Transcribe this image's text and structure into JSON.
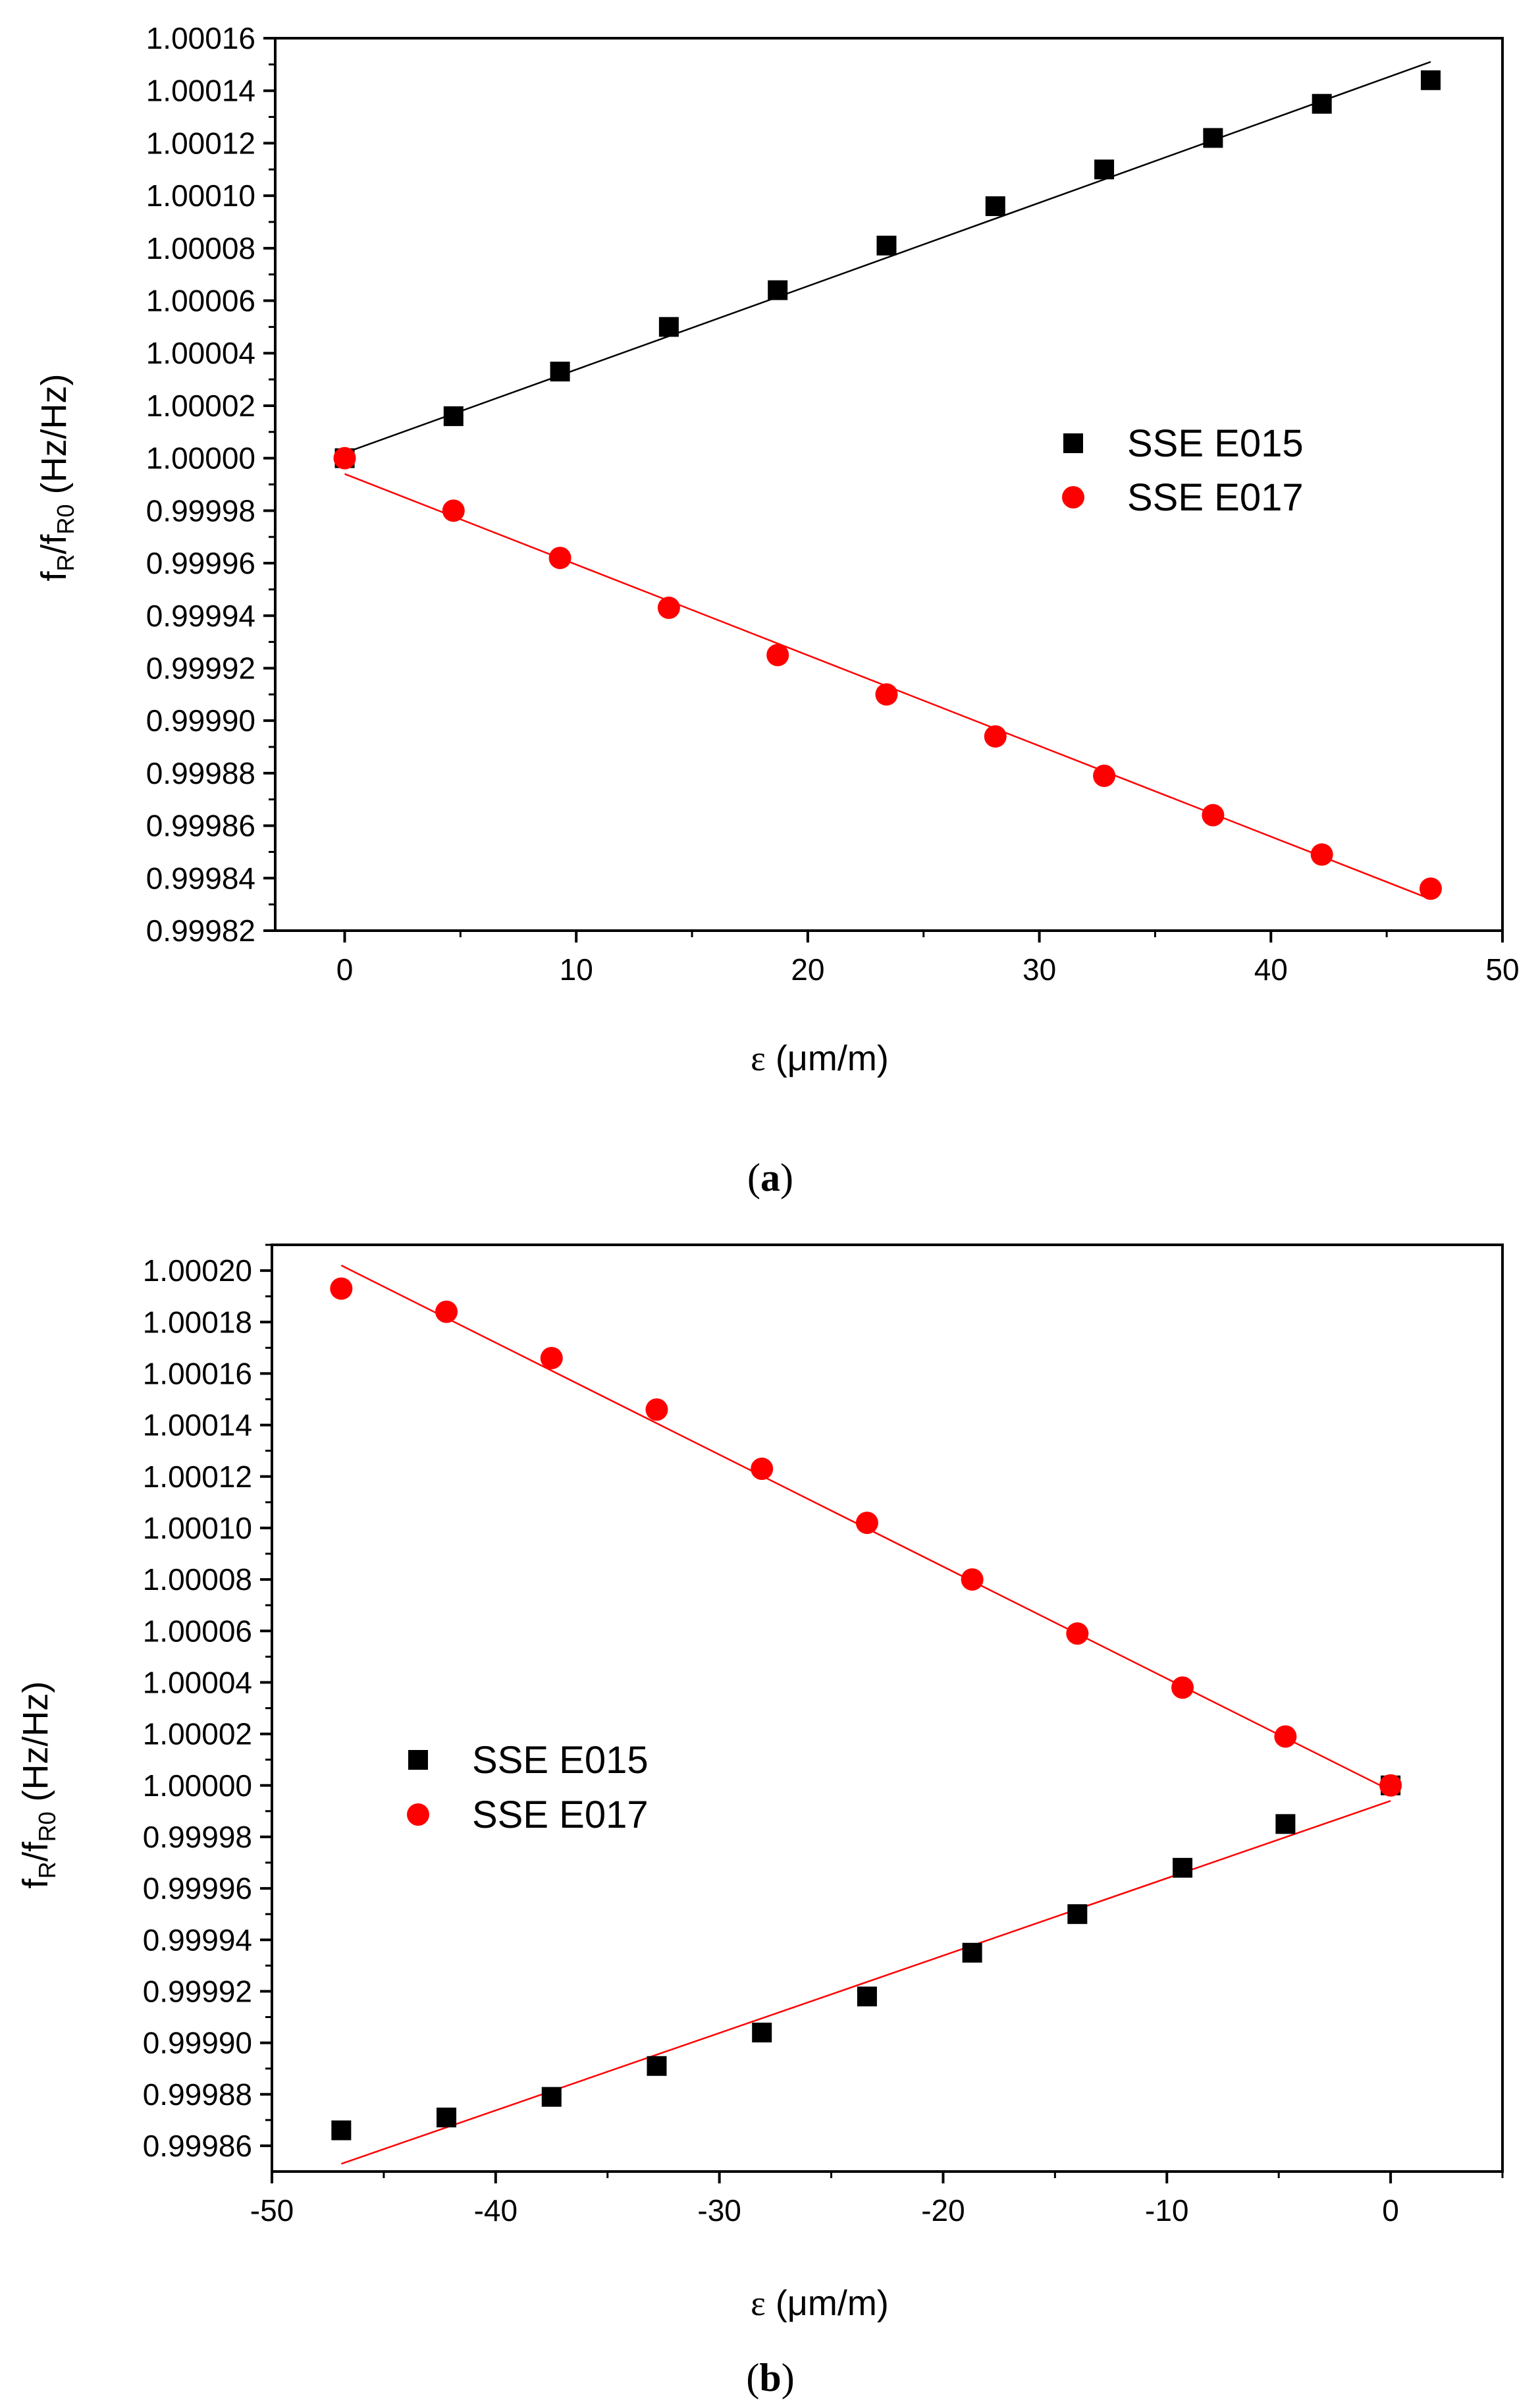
{
  "chart_data": [
    {
      "type": "scatter",
      "panel": "a",
      "caption_open": "(",
      "caption_letter": "a",
      "caption_close": ")",
      "xlabel_symbol": "ε",
      "xlabel_unit": "(μm/m)",
      "ylabel_f": "f",
      "ylabel_sub_r": "R",
      "ylabel_slash": "/f",
      "ylabel_sub_r0": "R0",
      "ylabel_unit": " (Hz/Hz)",
      "xlim": [
        -3,
        50
      ],
      "ylim": [
        0.99982,
        1.00016
      ],
      "x_ticks": [
        0,
        10,
        20,
        30,
        40,
        50
      ],
      "x_tick_labels": [
        "0",
        "10",
        "20",
        "30",
        "40",
        "50"
      ],
      "y_ticks": [
        0.99982,
        0.99984,
        0.99986,
        0.99988,
        0.9999,
        0.99992,
        0.99994,
        0.99996,
        0.99998,
        1.0,
        1.00002,
        1.00004,
        1.00006,
        1.00008,
        1.0001,
        1.00012,
        1.00014,
        1.00016
      ],
      "y_tick_labels": [
        "0.99982",
        "0.99984",
        "0.99986",
        "0.99988",
        "0.99990",
        "0.99992",
        "0.99994",
        "0.99996",
        "0.99998",
        "1.00000",
        "1.00002",
        "1.00004",
        "1.00006",
        "1.00008",
        "1.00010",
        "1.00012",
        "1.00014",
        "1.00016"
      ],
      "legend_position": "center-right",
      "series": [
        {
          "name": "SSE E015",
          "marker": "square",
          "color": "#000000",
          "x": [
            0,
            4.7,
            9.3,
            14.0,
            18.7,
            23.4,
            28.1,
            32.8,
            37.5,
            42.2,
            46.9
          ],
          "y": [
            1.0,
            1.000016,
            1.000033,
            1.00005,
            1.000064,
            1.000081,
            1.000096,
            1.00011,
            1.000122,
            1.000135,
            1.000144
          ],
          "fit": {
            "x": [
              0,
              46.9
            ],
            "y": [
              1.000002,
              1.000151
            ],
            "color": "#000000"
          }
        },
        {
          "name": "SSE E017",
          "marker": "circle",
          "color": "#ff0000",
          "x": [
            0,
            4.7,
            9.3,
            14.0,
            18.7,
            23.4,
            28.1,
            32.8,
            37.5,
            42.2,
            46.9
          ],
          "y": [
            1.0,
            0.99998,
            0.999962,
            0.999943,
            0.999925,
            0.99991,
            0.999894,
            0.999879,
            0.999864,
            0.999849,
            0.999836
          ],
          "fit": {
            "x": [
              0,
              46.9
            ],
            "y": [
              0.999994,
              0.999832
            ],
            "color": "#ff0000"
          }
        }
      ]
    },
    {
      "type": "scatter",
      "panel": "b",
      "caption_open": "(",
      "caption_letter": "b",
      "caption_close": ")",
      "xlabel_symbol": "ε",
      "xlabel_unit": "(μm/m)",
      "ylabel_f": "f",
      "ylabel_sub_r": "R",
      "ylabel_slash": "/f",
      "ylabel_sub_r0": "R0",
      "ylabel_unit": " (Hz/Hz)",
      "xlim": [
        -50,
        5
      ],
      "ylim": [
        0.99985,
        1.00021
      ],
      "x_ticks": [
        -50,
        -40,
        -30,
        -20,
        -10,
        0
      ],
      "x_tick_labels": [
        "-50",
        "-40",
        "-30",
        "-20",
        "-10",
        "0"
      ],
      "y_ticks": [
        0.99986,
        0.99988,
        0.9999,
        0.99992,
        0.99994,
        0.99996,
        0.99998,
        1.0,
        1.00002,
        1.00004,
        1.00006,
        1.00008,
        1.0001,
        1.00012,
        1.00014,
        1.00016,
        1.00018,
        1.0002
      ],
      "y_tick_labels": [
        "0.99986",
        "0.99988",
        "0.99990",
        "0.99992",
        "0.99994",
        "0.99996",
        "0.99998",
        "1.00000",
        "1.00002",
        "1.00004",
        "1.00006",
        "1.00008",
        "1.00010",
        "1.00012",
        "1.00014",
        "1.00016",
        "1.00018",
        "1.00020"
      ],
      "legend_position": "center-left",
      "series": [
        {
          "name": "SSE E015",
          "marker": "square",
          "color": "#000000",
          "x": [
            -46.9,
            -42.2,
            -37.5,
            -32.8,
            -28.1,
            -23.4,
            -18.7,
            -14.0,
            -9.3,
            -4.7,
            0
          ],
          "y": [
            0.999866,
            0.999871,
            0.999879,
            0.999891,
            0.999904,
            0.999918,
            0.999935,
            0.99995,
            0.999968,
            0.999985,
            1.0
          ],
          "fit": {
            "x": [
              -46.9,
              0
            ],
            "y": [
              0.999853,
              0.999994
            ],
            "color": "#ff0000"
          }
        },
        {
          "name": "SSE E017",
          "marker": "circle",
          "color": "#ff0000",
          "x": [
            -46.9,
            -42.2,
            -37.5,
            -32.8,
            -28.1,
            -23.4,
            -18.7,
            -14.0,
            -9.3,
            -4.7,
            0
          ],
          "y": [
            1.000193,
            1.000184,
            1.000166,
            1.000146,
            1.000123,
            1.000102,
            1.00008,
            1.000059,
            1.000038,
            1.000019,
            1.0
          ],
          "fit": {
            "x": [
              -46.9,
              0
            ],
            "y": [
              1.000202,
              0.999998
            ],
            "color": "#ff0000"
          }
        }
      ]
    }
  ]
}
